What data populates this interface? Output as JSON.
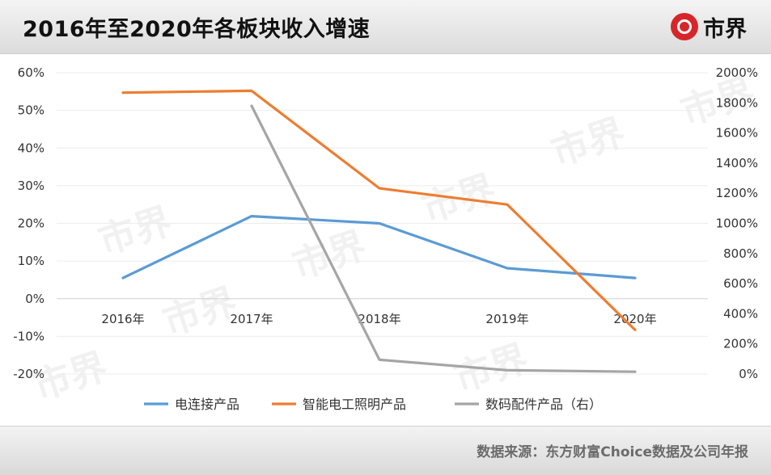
{
  "header": {
    "title": "2016年至2020年各板块收入增速",
    "logo_text": "市界"
  },
  "footer": {
    "source": "数据来源：东方财富Choice数据及公司年报"
  },
  "watermark_text": "市界",
  "chart_data": {
    "type": "line",
    "title": "2016年至2020年各板块收入增速",
    "xlabel": "",
    "ylabel": "",
    "categories": [
      "2016年",
      "2017年",
      "2018年",
      "2019年",
      "2020年"
    ],
    "y_left": {
      "ylim": [
        -20,
        60
      ],
      "ticks": [
        60,
        50,
        40,
        30,
        20,
        10,
        0,
        -10,
        -20
      ],
      "tick_labels": [
        "60%",
        "50%",
        "40%",
        "30%",
        "20%",
        "10%",
        "0%",
        "-10%",
        "-20%"
      ]
    },
    "y_right": {
      "ylim": [
        0,
        2000
      ],
      "ticks": [
        2000,
        1800,
        1600,
        1400,
        1200,
        1000,
        800,
        600,
        400,
        200,
        0
      ],
      "tick_labels": [
        "2000%",
        "1800%",
        "1600%",
        "1400%",
        "1200%",
        "1000%",
        "800%",
        "600%",
        "400%",
        "200%",
        "0%"
      ]
    },
    "series": [
      {
        "name": "电连接产品",
        "axis": "left",
        "color": "#5b9bd5",
        "values": [
          5.5,
          21.9,
          20.0,
          8.1,
          5.5
        ]
      },
      {
        "name": "智能电工照明产品",
        "axis": "left",
        "color": "#ed7d31",
        "values": [
          54.7,
          55.2,
          29.3,
          25.0,
          -8.3
        ]
      },
      {
        "name": "数码配件产品（右）",
        "axis": "right",
        "color": "#a5a5a5",
        "values": [
          null,
          1780,
          95,
          25,
          15
        ]
      }
    ],
    "grid": true,
    "legend": "bottom"
  }
}
